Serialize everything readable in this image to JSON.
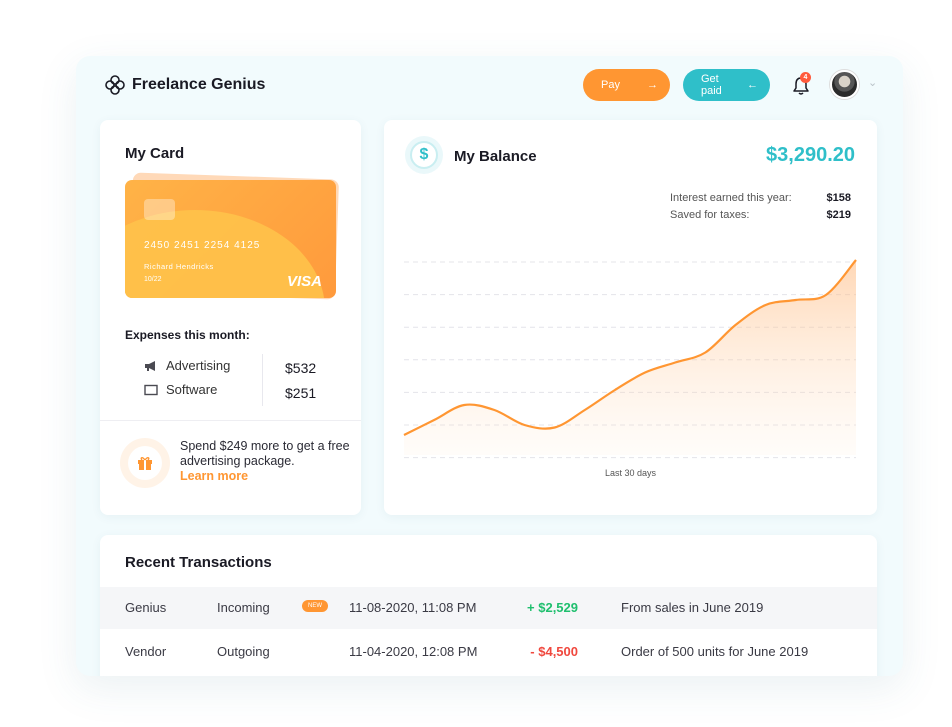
{
  "app": {
    "brand": "Freelance Genius"
  },
  "header": {
    "pay_label": "Pay",
    "pay_arrow": "→",
    "getpaid_label": "Get paid",
    "getpaid_arrow": "←",
    "notification_count": "4",
    "colors": {
      "pay": "#ff9632",
      "getpaid": "#2fbfc9"
    }
  },
  "my_card": {
    "title": "My Card",
    "card_number": "2450 2451 2254 4125",
    "holder": "Richard Hendricks",
    "expiry": "10/22",
    "network": "VISA"
  },
  "expenses": {
    "title": "Expenses this month:",
    "items": [
      {
        "icon": "megaphone-icon",
        "label": "Advertising",
        "amount": "$532"
      },
      {
        "icon": "monitor-icon",
        "label": "Software",
        "amount": "$251"
      }
    ]
  },
  "promo": {
    "text": "Spend $249 more to get a free advertising package.",
    "link": "Learn more"
  },
  "balance": {
    "title": "My Balance",
    "amount": "$3,290.20",
    "stats": [
      {
        "label": "Interest earned this year:",
        "value": "$158"
      },
      {
        "label": "Saved for taxes:",
        "value": "$219"
      }
    ],
    "caption": "Last 30 days"
  },
  "chart_data": {
    "type": "area",
    "x": [
      1,
      2,
      3,
      4,
      5,
      6,
      7,
      8,
      9,
      10,
      11,
      12,
      13,
      14,
      15,
      16
    ],
    "values": [
      0.08,
      0.14,
      0.2,
      0.18,
      0.12,
      0.11,
      0.18,
      0.26,
      0.33,
      0.37,
      0.41,
      0.52,
      0.6,
      0.62,
      0.64,
      0.78
    ],
    "xlabel": "Last 30 days",
    "ylabel": "",
    "ylim": [
      0,
      0.86
    ],
    "grid": true,
    "color": "#ff9632"
  },
  "transactions": {
    "title": "Recent Transactions",
    "rows": [
      {
        "party": "Genius",
        "direction": "Incoming",
        "badge": "NEW",
        "date": "11-08-2020,  11:08 PM",
        "amount": "+ $2,529",
        "amount_color": "#1fbf6e",
        "description": "From sales in June 2019"
      },
      {
        "party": "Vendor",
        "direction": "Outgoing",
        "badge": "",
        "date": "11-04-2020,  12:08 PM",
        "amount": "- $4,500",
        "amount_color": "#f0483e",
        "description": "Order of 500 units for June 2019"
      }
    ]
  }
}
